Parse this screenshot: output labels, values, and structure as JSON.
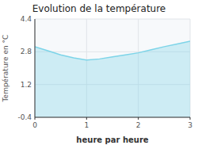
{
  "chart_data": {
    "type": "area",
    "title": "Evolution de la température",
    "x_label": "heure par heure",
    "y_label": "Température en °C",
    "x": [
      0,
      0.25,
      0.5,
      0.75,
      1.0,
      1.25,
      1.5,
      1.75,
      2.0,
      2.25,
      2.5,
      2.75,
      3.0
    ],
    "values": [
      3.05,
      2.85,
      2.65,
      2.5,
      2.4,
      2.45,
      2.55,
      2.65,
      2.75,
      2.9,
      3.05,
      3.18,
      3.32
    ],
    "color": "#7dd4e8",
    "xlim": [
      0,
      3
    ],
    "xticks": [
      0,
      1,
      2,
      3
    ],
    "ylim": [
      -0.4,
      4.4
    ],
    "yticks": [
      -0.4,
      1.2,
      2.8,
      4.4
    ],
    "grid": true
  }
}
